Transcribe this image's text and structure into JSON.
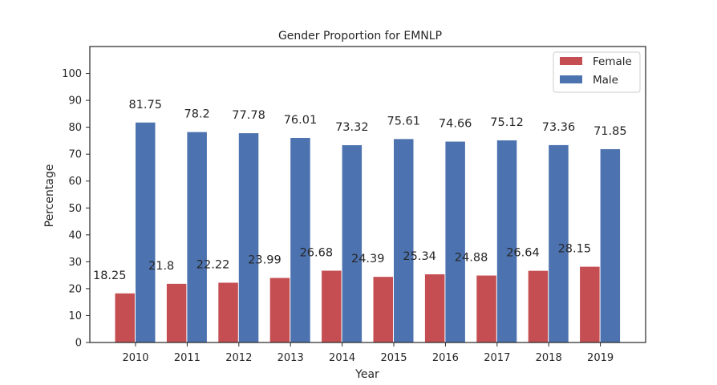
{
  "chart_data": {
    "type": "bar",
    "title": "Gender Proportion for EMNLP",
    "xlabel": "Year",
    "ylabel": "Percentage",
    "categories": [
      "2010",
      "2011",
      "2012",
      "2013",
      "2014",
      "2015",
      "2016",
      "2017",
      "2018",
      "2019"
    ],
    "series": [
      {
        "name": "Female",
        "color": "#c44e52",
        "values": [
          18.25,
          21.8,
          22.22,
          23.99,
          26.68,
          24.39,
          25.34,
          24.88,
          26.64,
          28.15
        ],
        "labels": [
          "18.25",
          "21.8",
          "22.22",
          "23.99",
          "26.68",
          "24.39",
          "25.34",
          "24.88",
          "26.64",
          "28.15"
        ]
      },
      {
        "name": "Male",
        "color": "#4c72b0",
        "values": [
          81.75,
          78.2,
          77.78,
          76.01,
          73.32,
          75.61,
          74.66,
          75.12,
          73.36,
          71.85
        ],
        "labels": [
          "81.75",
          "78.2",
          "77.78",
          "76.01",
          "73.32",
          "75.61",
          "74.66",
          "75.12",
          "73.36",
          "71.85"
        ]
      }
    ],
    "ylim": [
      0,
      110
    ],
    "yticks": [
      "0",
      "10",
      "20",
      "30",
      "40",
      "50",
      "60",
      "70",
      "80",
      "90",
      "100"
    ],
    "grid": false,
    "legend_position": "top-right"
  }
}
